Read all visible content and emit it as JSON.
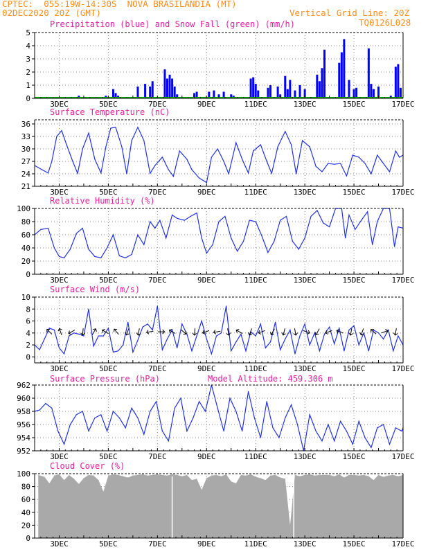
{
  "header": {
    "station_line": "CPTEC:  055:19W-14:30S  NOVA BRASILANDIA (MT)",
    "date_line": "02DEC2020 20Z (GMT)",
    "grid_line": "Vertical Grid Line: 20Z",
    "model_code": "TQ0126L028"
  },
  "colors": {
    "header_text": "#ff8c19",
    "panel_title": "#e0219a",
    "precip": "#0000ff",
    "snow": "#00b000",
    "series_line": "#2030e0",
    "cloud_fill": "#a9a9a9",
    "wind_arrow": "#000000"
  },
  "x_axis": {
    "days": [
      3,
      5,
      7,
      9,
      11,
      13,
      15,
      17
    ],
    "labels": [
      "3DEC",
      "5DEC",
      "7DEC",
      "9DEC",
      "11DEC",
      "13DEC",
      "15DEC",
      "17DEC"
    ],
    "range_days": [
      2.0,
      17.0
    ]
  },
  "chart_data": [
    {
      "id": "precip",
      "type": "bar",
      "title": "Precipitation (blue) and Snow Fall (green) (mm/h)",
      "ylim": [
        0,
        5
      ],
      "yticks": [
        0,
        1,
        2,
        3,
        4,
        5
      ],
      "series": [
        {
          "name": "Precipitation",
          "x": [
            3.1,
            3.6,
            3.8,
            4.7,
            4.9,
            5.2,
            5.3,
            5.4,
            5.5,
            6.0,
            6.2,
            6.5,
            6.7,
            6.8,
            7.3,
            7.4,
            7.5,
            7.6,
            7.7,
            7.8,
            8.5,
            8.6,
            9.1,
            9.3,
            9.5,
            9.7,
            10.0,
            10.1,
            10.8,
            10.9,
            11.0,
            11.1,
            11.5,
            11.6,
            11.9,
            12.0,
            12.2,
            12.3,
            12.4,
            12.6,
            12.8,
            13.0,
            13.5,
            13.6,
            13.7,
            13.8,
            14.4,
            14.5,
            14.6,
            14.8,
            15.0,
            15.1,
            15.6,
            15.7,
            15.8,
            16.0,
            16.5,
            16.7,
            16.8,
            16.9
          ],
          "values": [
            0.1,
            0.1,
            0.2,
            0.1,
            0.2,
            0.7,
            0.4,
            0.2,
            0.1,
            0.1,
            0.9,
            1.1,
            0.9,
            1.3,
            2.2,
            1.5,
            1.8,
            1.5,
            0.9,
            0.3,
            0.4,
            0.5,
            0.5,
            0.6,
            0.3,
            0.5,
            0.3,
            0.2,
            1.5,
            1.6,
            1.1,
            0.6,
            0.8,
            1.0,
            0.9,
            0.3,
            1.7,
            0.7,
            1.4,
            0.6,
            1.0,
            0.7,
            1.8,
            1.3,
            2.3,
            3.7,
            2.7,
            3.5,
            4.5,
            1.4,
            0.7,
            0.8,
            3.8,
            1.1,
            0.7,
            0.9,
            0.2,
            2.4,
            2.6,
            0.8
          ]
        },
        {
          "name": "Snow Fall",
          "x": [],
          "values": []
        }
      ]
    },
    {
      "id": "temp",
      "type": "line",
      "title": "Surface Temperature (nC)",
      "ylim": [
        21,
        37
      ],
      "yticks": [
        21,
        24,
        27,
        30,
        33,
        36
      ],
      "x": [
        2.0,
        2.3,
        2.55,
        2.7,
        2.9,
        3.1,
        3.3,
        3.55,
        3.75,
        3.95,
        4.2,
        4.45,
        4.7,
        4.9,
        5.1,
        5.3,
        5.55,
        5.75,
        5.95,
        6.2,
        6.45,
        6.7,
        6.9,
        7.2,
        7.45,
        7.65,
        7.9,
        8.2,
        8.4,
        8.7,
        9.0,
        9.2,
        9.45,
        9.7,
        9.9,
        10.2,
        10.45,
        10.7,
        10.9,
        11.2,
        11.45,
        11.65,
        11.9,
        12.2,
        12.45,
        12.65,
        12.9,
        13.2,
        13.45,
        13.7,
        13.95,
        14.2,
        14.45,
        14.7,
        14.95,
        15.2,
        15.45,
        15.7,
        15.95,
        16.2,
        16.45,
        16.7,
        16.85,
        17.0
      ],
      "values": [
        26.0,
        25.0,
        24.2,
        27.0,
        33.0,
        34.4,
        31.0,
        27.0,
        24.1,
        30.0,
        33.8,
        27.5,
        24.2,
        30.5,
        35.0,
        35.2,
        30.5,
        24.0,
        32.0,
        35.2,
        32.0,
        24.1,
        26.0,
        28.0,
        25.0,
        23.4,
        29.5,
        27.5,
        25.0,
        23.0,
        21.9,
        28.0,
        30.0,
        27.0,
        24.0,
        31.5,
        27.5,
        24.2,
        29.5,
        31.0,
        27.0,
        24.1,
        30.5,
        34.2,
        31.0,
        24.0,
        32.0,
        30.5,
        25.8,
        24.5,
        26.5,
        26.3,
        26.5,
        23.5,
        28.5,
        28.0,
        26.5,
        24.0,
        28.5,
        26.5,
        24.5,
        29.5,
        28.0,
        28.5
      ]
    },
    {
      "id": "rh",
      "type": "line",
      "title": "Relative Humidity (%)",
      "ylim": [
        0,
        100
      ],
      "yticks": [
        0,
        20,
        40,
        60,
        80,
        100
      ],
      "x": [
        2.0,
        2.25,
        2.55,
        2.8,
        3.0,
        3.2,
        3.45,
        3.7,
        3.95,
        4.2,
        4.45,
        4.7,
        4.95,
        5.2,
        5.45,
        5.7,
        5.95,
        6.2,
        6.45,
        6.7,
        6.9,
        7.1,
        7.35,
        7.6,
        7.8,
        8.1,
        8.35,
        8.6,
        8.8,
        9.0,
        9.25,
        9.5,
        9.75,
        10.0,
        10.25,
        10.5,
        10.75,
        11.0,
        11.25,
        11.5,
        11.75,
        12.0,
        12.25,
        12.5,
        12.75,
        13.0,
        13.25,
        13.5,
        13.75,
        14.0,
        14.25,
        14.5,
        14.65,
        14.8,
        15.05,
        15.3,
        15.55,
        15.75,
        15.95,
        16.2,
        16.45,
        16.65,
        16.8,
        17.0
      ],
      "values": [
        60.0,
        68.0,
        70.0,
        40.0,
        27.0,
        25.0,
        38.0,
        62.0,
        70.0,
        38.0,
        27.0,
        25.0,
        40.0,
        60.0,
        28.0,
        25.0,
        30.0,
        60.0,
        45.0,
        80.0,
        70.0,
        82.0,
        55.0,
        90.0,
        85.0,
        82.0,
        88.0,
        93.0,
        55.0,
        32.0,
        45.0,
        80.0,
        88.0,
        55.0,
        35.0,
        50.0,
        82.0,
        80.0,
        58.0,
        33.0,
        50.0,
        82.0,
        88.0,
        50.0,
        38.0,
        55.0,
        88.0,
        97.0,
        78.0,
        72.0,
        100.0,
        100.0,
        55.0,
        90.0,
        68.0,
        82.0,
        95.0,
        45.0,
        80.0,
        100.0,
        100.0,
        42.0,
        72.0,
        70.0
      ]
    },
    {
      "id": "wind",
      "type": "line",
      "title": "Surface Wind (m/s)",
      "ylim": [
        -1,
        10
      ],
      "yticks": [
        0,
        2,
        4,
        6,
        8,
        10
      ],
      "x": [
        2.0,
        2.2,
        2.4,
        2.6,
        2.8,
        3.0,
        3.2,
        3.4,
        3.6,
        3.8,
        4.0,
        4.2,
        4.4,
        4.6,
        4.8,
        5.0,
        5.2,
        5.4,
        5.6,
        5.8,
        6.0,
        6.2,
        6.4,
        6.6,
        6.8,
        7.0,
        7.2,
        7.4,
        7.6,
        7.8,
        8.0,
        8.2,
        8.4,
        8.6,
        8.8,
        9.0,
        9.2,
        9.4,
        9.6,
        9.8,
        10.0,
        10.2,
        10.4,
        10.6,
        10.8,
        11.0,
        11.2,
        11.4,
        11.6,
        11.8,
        12.0,
        12.2,
        12.4,
        12.6,
        12.8,
        13.0,
        13.2,
        13.4,
        13.6,
        13.8,
        14.0,
        14.2,
        14.4,
        14.6,
        14.8,
        15.0,
        15.2,
        15.4,
        15.6,
        15.8,
        16.0,
        16.2,
        16.4,
        16.6,
        16.8,
        17.0
      ],
      "values": [
        2.0,
        1.2,
        3.0,
        4.8,
        4.5,
        1.5,
        0.5,
        3.5,
        4.0,
        3.8,
        3.5,
        8.0,
        1.8,
        3.5,
        3.5,
        4.8,
        0.8,
        1.0,
        2.0,
        5.8,
        0.8,
        2.8,
        5.0,
        5.5,
        4.5,
        8.5,
        1.2,
        3.0,
        4.5,
        1.5,
        5.5,
        3.8,
        1.0,
        3.5,
        6.0,
        3.0,
        0.5,
        3.5,
        4.0,
        8.5,
        1.0,
        2.5,
        3.8,
        1.0,
        4.2,
        3.5,
        5.5,
        1.5,
        2.5,
        5.8,
        1.2,
        3.0,
        4.5,
        0.5,
        3.5,
        5.5,
        2.0,
        4.0,
        1.0,
        3.8,
        5.0,
        2.2,
        4.8,
        1.0,
        4.5,
        5.2,
        2.0,
        4.0,
        1.0,
        4.5,
        4.0,
        3.0,
        4.5,
        1.0,
        3.5,
        2.0
      ]
    },
    {
      "id": "pressure",
      "type": "line",
      "title": "Surface Pressure (hPa)",
      "annotation": "Model Altitude: 459.306 m",
      "ylim": [
        952,
        962
      ],
      "yticks": [
        952,
        954,
        956,
        958,
        960,
        962
      ],
      "x": [
        2.0,
        2.2,
        2.45,
        2.7,
        2.95,
        3.2,
        3.45,
        3.7,
        3.95,
        4.2,
        4.45,
        4.7,
        4.95,
        5.2,
        5.45,
        5.7,
        5.95,
        6.2,
        6.45,
        6.7,
        6.95,
        7.2,
        7.45,
        7.7,
        7.95,
        8.2,
        8.45,
        8.7,
        8.95,
        9.2,
        9.45,
        9.7,
        9.95,
        10.2,
        10.45,
        10.7,
        10.95,
        11.2,
        11.45,
        11.7,
        11.95,
        12.2,
        12.45,
        12.7,
        12.95,
        13.2,
        13.45,
        13.7,
        13.95,
        14.2,
        14.45,
        14.7,
        14.95,
        15.2,
        15.45,
        15.7,
        15.95,
        16.2,
        16.45,
        16.7,
        16.95,
        17.0
      ],
      "values": [
        958.0,
        958.2,
        959.2,
        958.5,
        955.0,
        953.0,
        956.0,
        957.5,
        958.0,
        955.0,
        957.0,
        957.5,
        955.0,
        958.0,
        957.0,
        955.5,
        958.5,
        957.0,
        954.5,
        958.0,
        959.5,
        955.0,
        953.5,
        958.5,
        960.0,
        955.0,
        957.0,
        959.5,
        958.0,
        962.0,
        958.5,
        955.0,
        960.0,
        958.0,
        955.0,
        961.0,
        957.0,
        954.0,
        959.5,
        955.5,
        954.0,
        957.0,
        959.0,
        956.0,
        952.0,
        957.5,
        955.0,
        953.5,
        956.0,
        953.5,
        956.5,
        955.0,
        953.0,
        956.5,
        954.0,
        952.5,
        955.5,
        956.0,
        953.0,
        955.5,
        955.0,
        955.5
      ]
    },
    {
      "id": "cloud",
      "type": "area",
      "title": "Cloud Cover (%)",
      "ylim": [
        0,
        100
      ],
      "yticks": [
        0,
        20,
        40,
        60,
        80,
        100
      ],
      "x": [
        2.15,
        2.4,
        2.6,
        2.8,
        3.0,
        3.2,
        3.4,
        3.6,
        3.8,
        4.0,
        4.2,
        4.4,
        4.6,
        4.8,
        5.0,
        5.2,
        5.4,
        5.6,
        5.8,
        6.0,
        6.2,
        6.4,
        6.6,
        6.8,
        7.0,
        7.2,
        7.4,
        7.6,
        7.8,
        8.0,
        8.2,
        8.4,
        8.6,
        8.8,
        9.0,
        9.2,
        9.4,
        9.6,
        9.8,
        10.0,
        10.2,
        10.4,
        10.6,
        10.8,
        11.0,
        11.2,
        11.4,
        11.6,
        11.8,
        12.0,
        12.2,
        12.4,
        12.6,
        12.8,
        13.0,
        13.2,
        13.4,
        13.6,
        13.8,
        14.0,
        14.2,
        14.4,
        14.6,
        14.8,
        15.0,
        15.2,
        15.4,
        15.6,
        15.8,
        16.0,
        16.2,
        16.4,
        16.6,
        16.8,
        17.0
      ],
      "values": [
        98,
        95,
        85,
        97,
        99,
        90,
        98,
        92,
        84,
        93,
        98,
        97,
        90,
        72,
        97,
        99,
        98,
        96,
        94,
        97,
        98,
        99,
        97,
        98,
        99,
        98,
        97,
        99,
        98,
        96,
        98,
        90,
        92,
        75,
        93,
        97,
        98,
        96,
        99,
        88,
        85,
        98,
        97,
        99,
        95,
        93,
        90,
        97,
        98,
        94,
        92,
        20,
        98,
        96,
        98,
        99,
        97,
        98,
        98,
        98,
        96,
        99,
        94,
        98,
        98,
        97,
        98,
        96,
        90,
        98,
        95,
        97,
        98,
        96,
        98
      ]
    }
  ]
}
